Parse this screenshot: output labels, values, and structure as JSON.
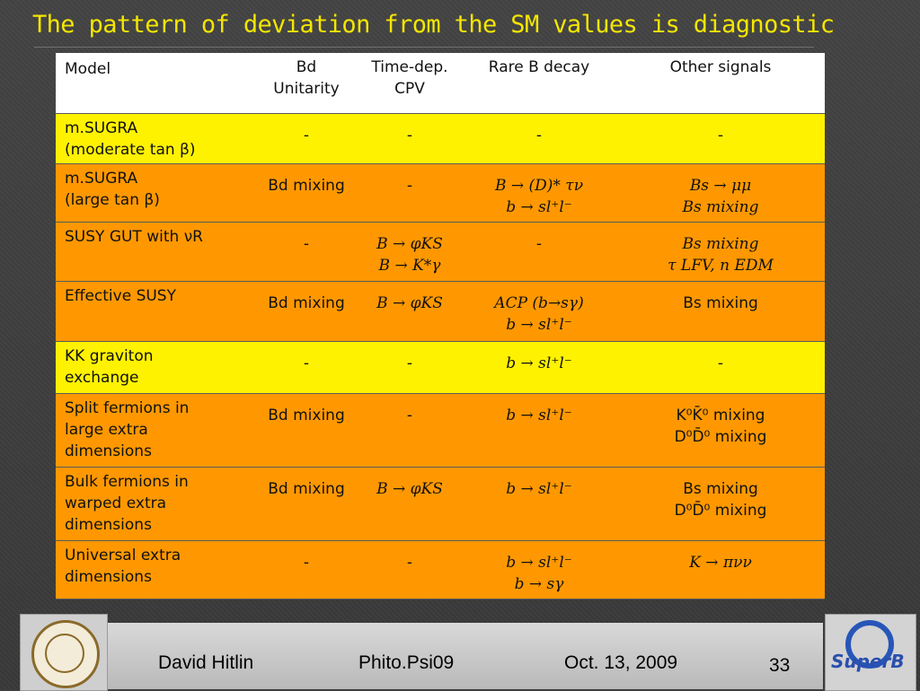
{
  "title": "The pattern of deviation from the SM values is diagnostic",
  "table": {
    "headers": [
      "Model",
      "Bd\nUnitarity",
      "Time-dep.\nCPV",
      "Rare B decay",
      "Other signals"
    ],
    "rows": [
      {
        "model": "m.SUGRA\n(moderate tan β)",
        "cells": [
          "-",
          "-",
          "-",
          "-"
        ],
        "row_color": "#fff200"
      },
      {
        "model": "m.SUGRA\n(large tan β)",
        "cells": [
          "Bd mixing",
          "-",
          "B → (D)* τν\nb → sl⁺l⁻",
          "Bs → μμ\nBs mixing"
        ],
        "row_color": "#ff9800"
      },
      {
        "model": "SUSY GUT with νR",
        "cells": [
          "-",
          "B → φKS\nB → K*γ",
          "-",
          "Bs mixing\nτ LFV, n EDM"
        ],
        "row_color": "#ff9800"
      },
      {
        "model": "Effective SUSY",
        "cells": [
          "Bd mixing",
          "B → φKS",
          "ACP (b→sγ)\nb → sl⁺l⁻",
          "Bs mixing"
        ],
        "row_color": "#ff9800"
      },
      {
        "model": "KK graviton\nexchange",
        "cells": [
          "-",
          "-",
          "b → sl⁺l⁻",
          "-"
        ],
        "row_color": "#fff200"
      },
      {
        "model": "Split fermions in\nlarge extra\ndimensions",
        "cells": [
          "Bd mixing",
          "-",
          "b → sl⁺l⁻",
          "K⁰K̄⁰ mixing\nD⁰D̄⁰ mixing"
        ],
        "row_color": "#ff9800"
      },
      {
        "model": "Bulk fermions in\nwarped extra\ndimensions",
        "cells": [
          "Bd mixing",
          "B → φKS",
          "b → sl⁺l⁻",
          "Bs mixing\nD⁰D̄⁰ mixing"
        ],
        "row_color": "#ff9800"
      },
      {
        "model": "Universal extra\ndimensions",
        "cells": [
          "-",
          "-",
          "b → sl⁺l⁻\nb → sγ",
          "K → πνν"
        ],
        "row_color": "#ff9800"
      }
    ]
  },
  "footer": {
    "author": "David Hitlin",
    "event": "Phito.Psi09",
    "date": "Oct. 13, 2009",
    "page": "33",
    "logo_right_text": "SuperB"
  },
  "colors": {
    "title": "#f4e600",
    "highlight_yellow": "#fff200",
    "highlight_orange": "#ff9800"
  }
}
